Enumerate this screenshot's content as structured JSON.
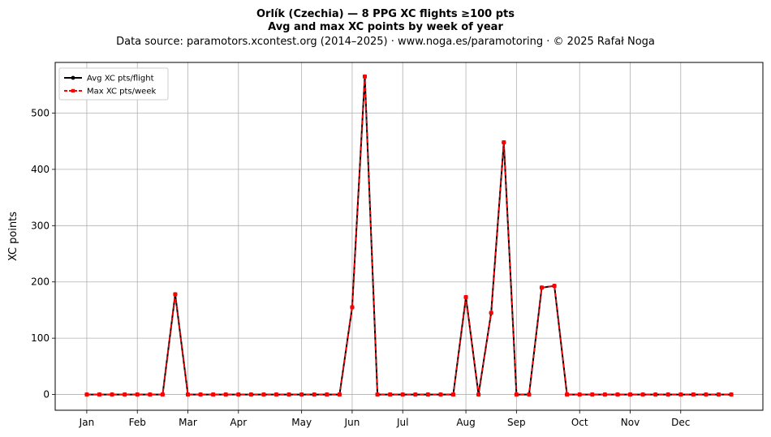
{
  "chart_data": {
    "type": "line",
    "title_line1": "Orlík (Czechia)  —  8 PPG XC flights ≥100 pts",
    "title_line2": "Avg and max XC points by week of year",
    "subtitle": "Data source: paramotors.xcontest.org (2014–2025)  ·  www.noga.es/paramotoring  ·  © 2025 Rafał Noga",
    "xlabel": "",
    "ylabel": "XC points",
    "x_weeks": [
      1,
      2,
      3,
      4,
      5,
      6,
      7,
      8,
      9,
      10,
      11,
      12,
      13,
      14,
      15,
      16,
      17,
      18,
      19,
      20,
      21,
      22,
      23,
      24,
      25,
      26,
      27,
      28,
      29,
      30,
      31,
      32,
      33,
      34,
      35,
      36,
      37,
      38,
      39,
      40,
      41,
      42,
      43,
      44,
      45,
      46,
      47,
      48,
      49,
      50,
      51,
      52
    ],
    "x_range": [
      -1.5,
      54.5
    ],
    "xticks": [
      {
        "label": "Jan",
        "week": 1
      },
      {
        "label": "Feb",
        "week": 5
      },
      {
        "label": "Mar",
        "week": 9
      },
      {
        "label": "Apr",
        "week": 13
      },
      {
        "label": "May",
        "week": 18
      },
      {
        "label": "Jun",
        "week": 22
      },
      {
        "label": "Jul",
        "week": 26
      },
      {
        "label": "Aug",
        "week": 31
      },
      {
        "label": "Sep",
        "week": 35
      },
      {
        "label": "Oct",
        "week": 40
      },
      {
        "label": "Nov",
        "week": 44
      },
      {
        "label": "Dec",
        "week": 48
      }
    ],
    "ylim": [
      -28,
      590
    ],
    "yticks": [
      0,
      100,
      200,
      300,
      400,
      500
    ],
    "grid": true,
    "legend_position": "top-left",
    "series": [
      {
        "name": "Avg XC pts/flight",
        "color": "#000000",
        "style": "solid",
        "marker": "circle",
        "values": [
          0,
          0,
          0,
          0,
          0,
          0,
          0,
          178,
          0,
          0,
          0,
          0,
          0,
          0,
          0,
          0,
          0,
          0,
          0,
          0,
          0,
          155,
          565,
          0,
          0,
          0,
          0,
          0,
          0,
          0,
          173,
          0,
          145,
          448,
          0,
          0,
          190,
          193,
          0,
          0,
          0,
          0,
          0,
          0,
          0,
          0,
          0,
          0,
          0,
          0,
          0,
          0
        ]
      },
      {
        "name": "Max XC pts/week",
        "color": "#ff0000",
        "style": "dashed",
        "marker": "square",
        "values": [
          0,
          0,
          0,
          0,
          0,
          0,
          0,
          178,
          0,
          0,
          0,
          0,
          0,
          0,
          0,
          0,
          0,
          0,
          0,
          0,
          0,
          155,
          565,
          0,
          0,
          0,
          0,
          0,
          0,
          0,
          173,
          0,
          145,
          448,
          0,
          0,
          190,
          193,
          0,
          0,
          0,
          0,
          0,
          0,
          0,
          0,
          0,
          0,
          0,
          0,
          0,
          0
        ]
      }
    ]
  }
}
